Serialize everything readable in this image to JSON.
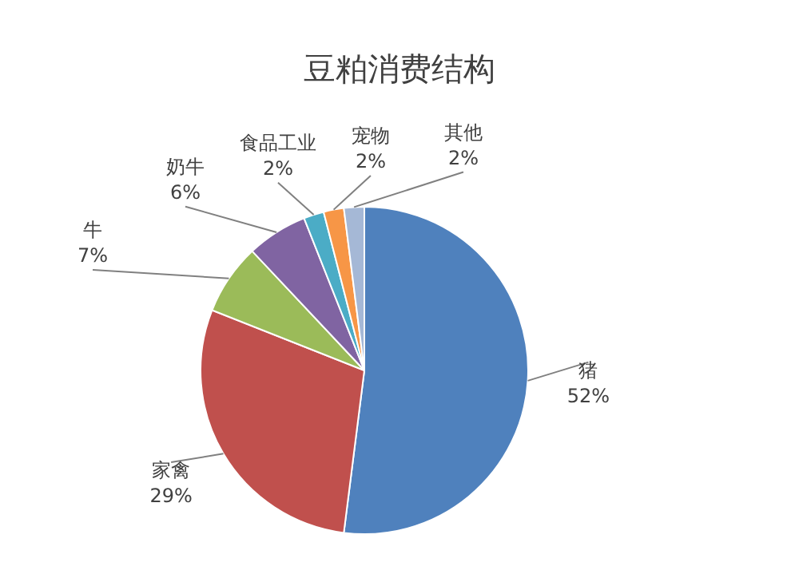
{
  "chart_data": {
    "type": "pie",
    "title": "豆粕消费结构",
    "categories": [
      "猪",
      "家禽",
      "牛",
      "奶牛",
      "食品工业",
      "宠物",
      "其他"
    ],
    "values": [
      52,
      29,
      7,
      6,
      2,
      2,
      2
    ],
    "value_labels": [
      "52%",
      "29%",
      "7%",
      "6%",
      "2%",
      "2%",
      "2%"
    ],
    "colors": [
      "#4f81bd",
      "#c0504d",
      "#9bbb59",
      "#8064a2",
      "#4bacc6",
      "#f79646",
      "#a5b8d6"
    ],
    "legend": false
  }
}
